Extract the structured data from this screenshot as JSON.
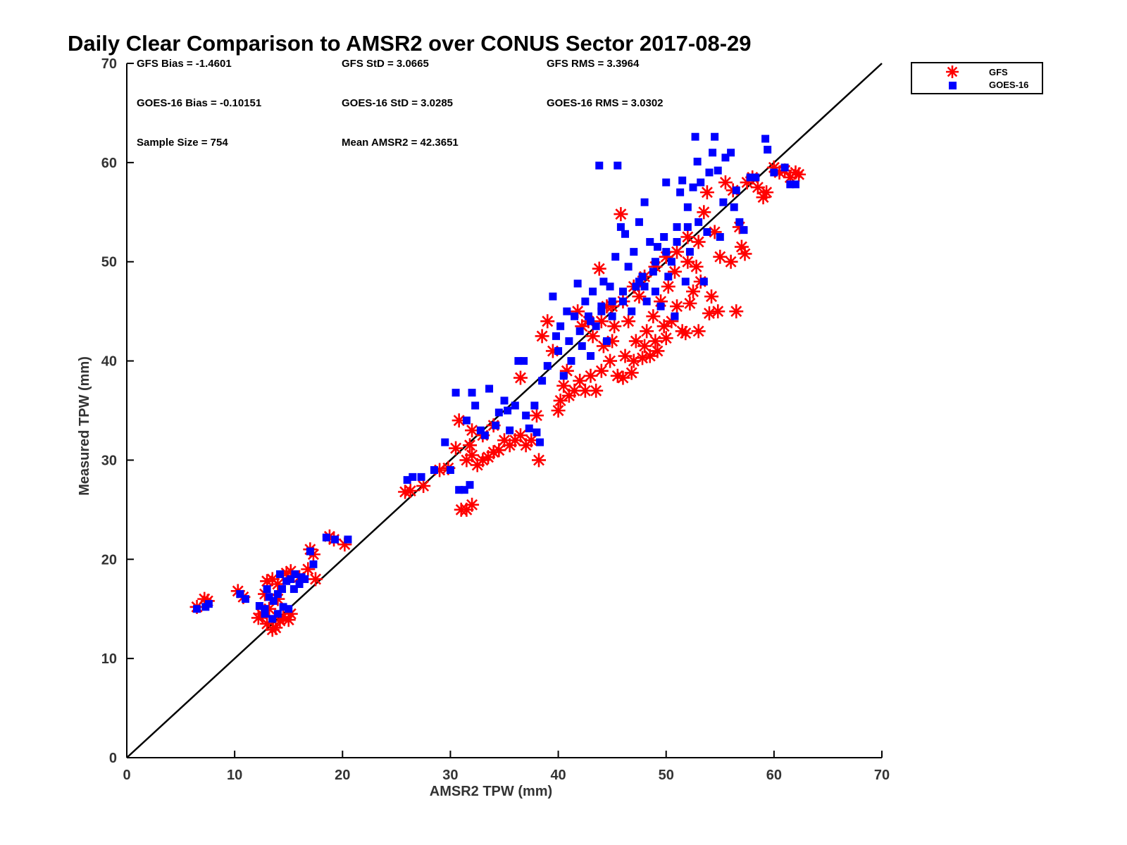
{
  "chart_data": {
    "type": "scatter",
    "title": "Daily Clear Comparison to AMSR2 over CONUS Sector 2017-08-29",
    "xlabel": "AMSR2 TPW (mm)",
    "ylabel": "Measured TPW (mm)",
    "xlim": [
      0,
      70
    ],
    "ylim": [
      0,
      70
    ],
    "xticks": [
      0,
      10,
      20,
      30,
      40,
      50,
      60,
      70
    ],
    "yticks": [
      0,
      10,
      20,
      30,
      40,
      50,
      60,
      70
    ],
    "grid": false,
    "legend_position": "outside-top-right",
    "reference_line": {
      "name": "1:1 line",
      "x": [
        0,
        70
      ],
      "y": [
        0,
        70
      ],
      "color": "#000000"
    },
    "stats": [
      "GFS Bias = -1.4601",
      "GFS StD = 3.0665",
      "GFS RMS = 3.3964",
      "GOES-16 Bias = -0.10151",
      "GOES-16 StD = 3.0285",
      "GOES-16 RMS = 3.0302",
      "Sample Size = 754",
      "Mean AMSR2 = 42.3651"
    ],
    "series": [
      {
        "name": "GFS",
        "marker": "asterisk",
        "color": "#ff0000",
        "points": [
          [
            6.5,
            15.2
          ],
          [
            7.2,
            16.0
          ],
          [
            7.5,
            15.8
          ],
          [
            10.3,
            16.8
          ],
          [
            10.8,
            16.2
          ],
          [
            12.2,
            14.1
          ],
          [
            12.5,
            14.5
          ],
          [
            13.0,
            13.5
          ],
          [
            13.5,
            12.9
          ],
          [
            13.8,
            13.1
          ],
          [
            14.2,
            13.8
          ],
          [
            14.5,
            14.2
          ],
          [
            15.0,
            13.9
          ],
          [
            15.2,
            14.5
          ],
          [
            13.0,
            17.8
          ],
          [
            13.5,
            18.0
          ],
          [
            14.0,
            17.5
          ],
          [
            14.8,
            18.6
          ],
          [
            15.2,
            18.8
          ],
          [
            16.0,
            18.2
          ],
          [
            16.8,
            19.0
          ],
          [
            17.5,
            18.0
          ],
          [
            17.0,
            21.0
          ],
          [
            17.3,
            20.5
          ],
          [
            18.8,
            22.3
          ],
          [
            19.2,
            22.0
          ],
          [
            20.2,
            21.5
          ],
          [
            12.8,
            16.5
          ],
          [
            13.2,
            15.0
          ],
          [
            14.0,
            16.0
          ],
          [
            25.8,
            26.8
          ],
          [
            26.3,
            26.9
          ],
          [
            27.5,
            27.4
          ],
          [
            29.0,
            29.0
          ],
          [
            29.8,
            29.2
          ],
          [
            30.5,
            31.2
          ],
          [
            30.8,
            34.0
          ],
          [
            31.0,
            25.0
          ],
          [
            31.5,
            25.0
          ],
          [
            32.0,
            25.5
          ],
          [
            31.5,
            30.0
          ],
          [
            32.0,
            30.5
          ],
          [
            32.5,
            29.5
          ],
          [
            33.0,
            30.0
          ],
          [
            33.5,
            30.3
          ],
          [
            34.0,
            30.8
          ],
          [
            34.5,
            31.0
          ],
          [
            35.0,
            32.0
          ],
          [
            35.5,
            31.5
          ],
          [
            36.0,
            32.0
          ],
          [
            36.5,
            32.5
          ],
          [
            36.5,
            38.3
          ],
          [
            37.0,
            31.5
          ],
          [
            37.5,
            32.0
          ],
          [
            38.0,
            34.5
          ],
          [
            38.2,
            30.0
          ],
          [
            32.0,
            33.0
          ],
          [
            33.0,
            32.5
          ],
          [
            34.0,
            33.5
          ],
          [
            31.8,
            31.5
          ],
          [
            38.5,
            42.5
          ],
          [
            39.0,
            44.0
          ],
          [
            39.5,
            41.0
          ],
          [
            40.0,
            35.0
          ],
          [
            40.2,
            36.0
          ],
          [
            40.5,
            37.5
          ],
          [
            40.8,
            39.0
          ],
          [
            41.0,
            36.5
          ],
          [
            41.5,
            37.0
          ],
          [
            41.8,
            45.0
          ],
          [
            42.0,
            38.0
          ],
          [
            42.2,
            43.5
          ],
          [
            42.5,
            37.0
          ],
          [
            42.8,
            44.0
          ],
          [
            43.0,
            38.5
          ],
          [
            43.2,
            42.5
          ],
          [
            43.5,
            37.0
          ],
          [
            43.8,
            49.3
          ],
          [
            44.0,
            39.0
          ],
          [
            44.2,
            41.5
          ],
          [
            44.5,
            45.5
          ],
          [
            44.8,
            40.0
          ],
          [
            45.0,
            42.0
          ],
          [
            45.2,
            43.5
          ],
          [
            45.5,
            38.5
          ],
          [
            45.8,
            54.8
          ],
          [
            46.0,
            38.3
          ],
          [
            46.2,
            40.5
          ],
          [
            46.5,
            44.0
          ],
          [
            46.8,
            38.8
          ],
          [
            47.0,
            40.0
          ],
          [
            47.2,
            42.0
          ],
          [
            47.5,
            46.5
          ],
          [
            47.8,
            40.3
          ],
          [
            48.0,
            41.5
          ],
          [
            48.2,
            43.0
          ],
          [
            48.5,
            40.5
          ],
          [
            48.8,
            44.5
          ],
          [
            49.0,
            42.0
          ],
          [
            49.2,
            41.0
          ],
          [
            49.5,
            46.0
          ],
          [
            49.8,
            43.5
          ],
          [
            50.0,
            42.3
          ],
          [
            50.2,
            47.5
          ],
          [
            50.5,
            44.0
          ],
          [
            50.8,
            49.0
          ],
          [
            51.0,
            45.5
          ],
          [
            51.5,
            43.0
          ],
          [
            51.8,
            42.8
          ],
          [
            52.0,
            50.0
          ],
          [
            52.2,
            45.8
          ],
          [
            52.5,
            47.0
          ],
          [
            52.8,
            49.5
          ],
          [
            53.0,
            43.0
          ],
          [
            53.2,
            48.0
          ],
          [
            53.5,
            55.0
          ],
          [
            53.8,
            57.0
          ],
          [
            54.0,
            44.8
          ],
          [
            54.2,
            46.5
          ],
          [
            54.5,
            53.0
          ],
          [
            54.8,
            45.0
          ],
          [
            55.0,
            50.5
          ],
          [
            55.5,
            58.0
          ],
          [
            56.0,
            50.0
          ],
          [
            56.2,
            57.2
          ],
          [
            56.5,
            45.0
          ],
          [
            56.8,
            53.5
          ],
          [
            57.0,
            51.5
          ],
          [
            57.3,
            50.8
          ],
          [
            57.5,
            58.0
          ],
          [
            58.0,
            58.5
          ],
          [
            58.5,
            57.5
          ],
          [
            59.0,
            56.5
          ],
          [
            59.3,
            57.0
          ],
          [
            60.0,
            59.5
          ],
          [
            60.5,
            59.0
          ],
          [
            61.0,
            59.2
          ],
          [
            61.5,
            58.5
          ],
          [
            62.0,
            59.0
          ],
          [
            62.3,
            58.8
          ],
          [
            48.0,
            48.5
          ],
          [
            47.0,
            47.5
          ],
          [
            46.0,
            46.0
          ],
          [
            45.0,
            45.5
          ],
          [
            44.0,
            44.0
          ],
          [
            49.0,
            49.5
          ],
          [
            50.0,
            50.5
          ],
          [
            51.0,
            51.0
          ],
          [
            52.0,
            52.5
          ],
          [
            53.0,
            52.0
          ]
        ]
      },
      {
        "name": "GOES-16",
        "marker": "square",
        "color": "#0000ff",
        "points": [
          [
            6.5,
            15.0
          ],
          [
            7.3,
            15.2
          ],
          [
            7.6,
            15.5
          ],
          [
            10.5,
            16.5
          ],
          [
            11.0,
            16.0
          ],
          [
            12.3,
            15.3
          ],
          [
            12.8,
            15.0
          ],
          [
            13.2,
            16.2
          ],
          [
            13.6,
            15.8
          ],
          [
            14.0,
            16.5
          ],
          [
            14.4,
            17.0
          ],
          [
            14.8,
            17.8
          ],
          [
            15.2,
            18.0
          ],
          [
            15.6,
            18.5
          ],
          [
            16.2,
            18.2
          ],
          [
            16.5,
            18.0
          ],
          [
            14.5,
            15.2
          ],
          [
            15.0,
            15.0
          ],
          [
            13.5,
            14.0
          ],
          [
            17.0,
            20.8
          ],
          [
            17.3,
            19.5
          ],
          [
            18.5,
            22.2
          ],
          [
            19.3,
            22.0
          ],
          [
            20.5,
            22.0
          ],
          [
            13.0,
            17.0
          ],
          [
            14.2,
            18.5
          ],
          [
            12.8,
            14.5
          ],
          [
            15.5,
            17.0
          ],
          [
            16.0,
            17.5
          ],
          [
            14.0,
            14.5
          ],
          [
            26.0,
            28.0
          ],
          [
            26.5,
            28.3
          ],
          [
            27.3,
            28.3
          ],
          [
            28.5,
            29.0
          ],
          [
            29.5,
            31.8
          ],
          [
            30.0,
            29.0
          ],
          [
            30.5,
            36.8
          ],
          [
            30.8,
            27.0
          ],
          [
            31.3,
            27.0
          ],
          [
            31.8,
            27.5
          ],
          [
            31.5,
            34.0
          ],
          [
            32.0,
            36.8
          ],
          [
            32.3,
            35.5
          ],
          [
            32.8,
            33.0
          ],
          [
            33.2,
            32.5
          ],
          [
            33.6,
            37.2
          ],
          [
            34.2,
            33.5
          ],
          [
            34.5,
            34.8
          ],
          [
            35.0,
            36.0
          ],
          [
            35.3,
            35.0
          ],
          [
            35.5,
            33.0
          ],
          [
            36.0,
            35.5
          ],
          [
            36.3,
            40.0
          ],
          [
            36.8,
            40.0
          ],
          [
            37.0,
            34.5
          ],
          [
            37.3,
            33.2
          ],
          [
            37.8,
            35.5
          ],
          [
            38.0,
            32.8
          ],
          [
            38.3,
            31.8
          ],
          [
            38.5,
            38.0
          ],
          [
            39.0,
            39.5
          ],
          [
            39.5,
            46.5
          ],
          [
            39.8,
            42.5
          ],
          [
            40.0,
            41.0
          ],
          [
            40.2,
            43.5
          ],
          [
            40.5,
            38.5
          ],
          [
            40.8,
            45.0
          ],
          [
            41.0,
            42.0
          ],
          [
            41.2,
            40.0
          ],
          [
            41.5,
            44.5
          ],
          [
            41.8,
            47.8
          ],
          [
            42.0,
            43.0
          ],
          [
            42.2,
            41.5
          ],
          [
            42.5,
            46.0
          ],
          [
            42.8,
            44.5
          ],
          [
            43.0,
            40.5
          ],
          [
            43.2,
            47.0
          ],
          [
            43.5,
            43.5
          ],
          [
            43.8,
            59.7
          ],
          [
            44.0,
            45.5
          ],
          [
            44.2,
            48.0
          ],
          [
            44.5,
            42.0
          ],
          [
            44.8,
            47.5
          ],
          [
            45.0,
            44.5
          ],
          [
            45.3,
            50.5
          ],
          [
            45.5,
            59.7
          ],
          [
            45.8,
            53.5
          ],
          [
            46.0,
            46.0
          ],
          [
            46.2,
            52.8
          ],
          [
            46.5,
            49.5
          ],
          [
            46.8,
            45.0
          ],
          [
            47.0,
            51.0
          ],
          [
            47.2,
            47.5
          ],
          [
            47.5,
            54.0
          ],
          [
            47.8,
            48.5
          ],
          [
            48.0,
            56.0
          ],
          [
            48.2,
            46.0
          ],
          [
            48.5,
            52.0
          ],
          [
            48.8,
            49.0
          ],
          [
            49.0,
            47.0
          ],
          [
            49.2,
            51.5
          ],
          [
            49.5,
            45.5
          ],
          [
            49.8,
            52.5
          ],
          [
            50.0,
            58.0
          ],
          [
            50.2,
            48.5
          ],
          [
            50.5,
            50.0
          ],
          [
            50.8,
            44.5
          ],
          [
            51.0,
            53.5
          ],
          [
            51.3,
            57.0
          ],
          [
            51.5,
            58.2
          ],
          [
            51.8,
            48.0
          ],
          [
            52.0,
            55.5
          ],
          [
            52.2,
            51.0
          ],
          [
            52.5,
            57.5
          ],
          [
            52.7,
            62.6
          ],
          [
            52.9,
            60.1
          ],
          [
            53.0,
            54.0
          ],
          [
            53.2,
            58.0
          ],
          [
            53.5,
            48.0
          ],
          [
            53.8,
            53.0
          ],
          [
            54.0,
            59.0
          ],
          [
            54.3,
            61.0
          ],
          [
            54.5,
            62.6
          ],
          [
            54.8,
            59.2
          ],
          [
            55.0,
            52.5
          ],
          [
            55.3,
            56.0
          ],
          [
            55.5,
            60.5
          ],
          [
            56.0,
            61.0
          ],
          [
            56.3,
            55.5
          ],
          [
            56.5,
            57.2
          ],
          [
            56.8,
            54.0
          ],
          [
            57.2,
            53.2
          ],
          [
            57.8,
            58.5
          ],
          [
            58.3,
            58.5
          ],
          [
            59.2,
            62.4
          ],
          [
            59.4,
            61.3
          ],
          [
            60.0,
            59.0
          ],
          [
            61.0,
            59.5
          ],
          [
            61.5,
            57.8
          ],
          [
            62.0,
            57.8
          ],
          [
            48.0,
            47.5
          ],
          [
            47.5,
            48.0
          ],
          [
            49.0,
            50.0
          ],
          [
            50.0,
            51.0
          ],
          [
            51.0,
            52.0
          ],
          [
            52.0,
            53.5
          ],
          [
            45.0,
            46.0
          ],
          [
            46.0,
            47.0
          ],
          [
            44.0,
            45.0
          ],
          [
            43.0,
            44.0
          ]
        ]
      }
    ]
  },
  "legend": {
    "items": [
      "GFS",
      "GOES-16"
    ]
  }
}
